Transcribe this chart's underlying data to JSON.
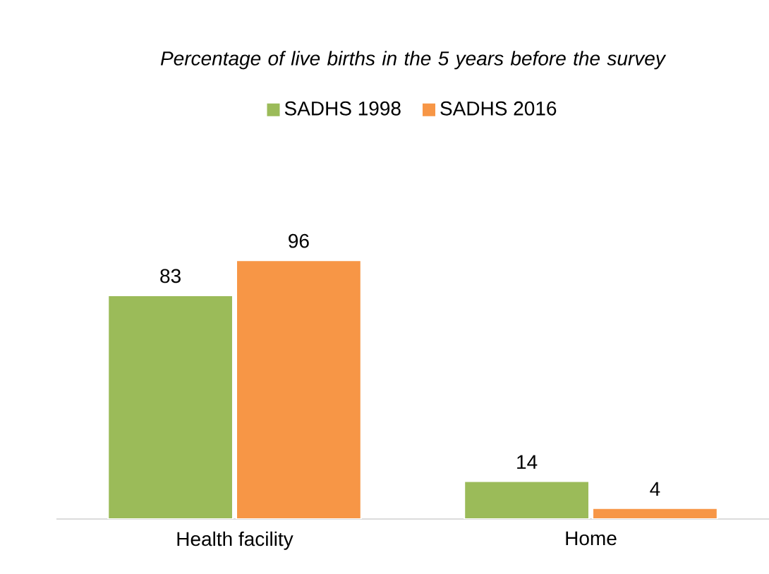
{
  "chart_data": {
    "type": "bar",
    "title": "Percentage of live births in the 5 years before the survey",
    "categories": [
      "Health facility",
      "Home"
    ],
    "series": [
      {
        "name": "SADHS 1998",
        "color": "#9bbb59",
        "values": [
          83,
          14
        ]
      },
      {
        "name": "SADHS 2016",
        "color": "#f79646",
        "values": [
          96,
          4
        ]
      }
    ],
    "data_labels": true,
    "legend": "top",
    "grid": false
  }
}
